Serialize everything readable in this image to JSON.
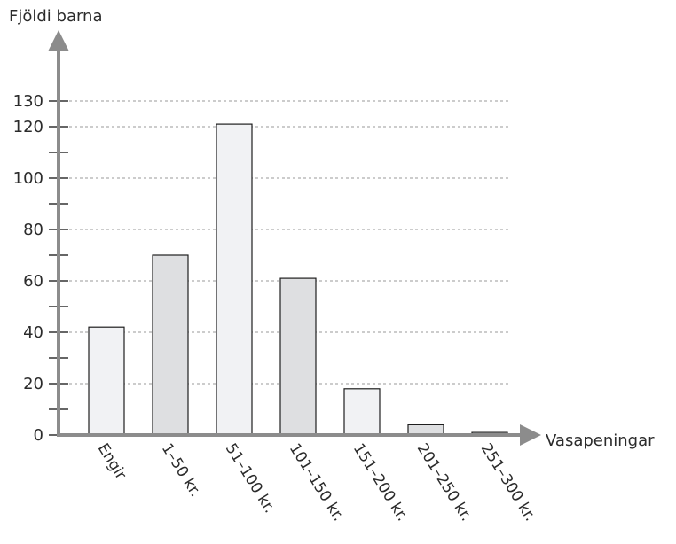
{
  "chart_data": {
    "type": "bar",
    "ylabel": "Fjöldi barna",
    "xlabel": "Vasapeningar",
    "categories": [
      "Engir",
      "1–50 kr.",
      "51–100 kr.",
      "101–150 kr.",
      "151–200 kr.",
      "201–250 kr.",
      "251–300 kr."
    ],
    "values": [
      42,
      70,
      121,
      61,
      18,
      4,
      1
    ],
    "ylim": [
      0,
      140
    ],
    "yticks": [
      0,
      20,
      40,
      60,
      80,
      100,
      120,
      130
    ],
    "grid": true,
    "bar_colors": [
      "#f1f2f4",
      "#dedfe1",
      "#f1f2f4",
      "#dedfe1",
      "#f1f2f4",
      "#dedfe1",
      "#f1f2f4"
    ],
    "axis_color": "#8c8c8c"
  }
}
